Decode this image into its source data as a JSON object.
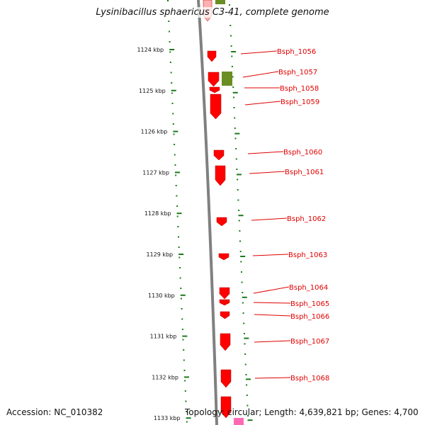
{
  "title": "Lysinibacillus sphaericus C3-41, complete genome",
  "accession_label": "Accession: NC_010382",
  "summary_label": "Topology: circular; Length: 4,639,821 bp; Genes: 4,700",
  "colors": {
    "gene_red": "#ff0000",
    "gene_green": "#6b8e23",
    "gene_pink": "#ff69b4",
    "backbone": "#808080",
    "tick_green": "#1a7a1a",
    "label_red": "#e00000"
  },
  "scale_ticks": [
    "1124 kbp",
    "1125 kbp",
    "1126 kbp",
    "1127 kbp",
    "1128 kbp",
    "1129 kbp",
    "1130 kbp",
    "1131 kbp",
    "1132 kbp",
    "1133 kbp"
  ],
  "gene_labels": [
    "Bsph_1056",
    "Bsph_1057",
    "Bsph_1058",
    "Bsph_1059",
    "Bsph_1060",
    "Bsph_1061",
    "Bsph_1062",
    "Bsph_1063",
    "Bsph_1064",
    "Bsph_1065",
    "Bsph_1066",
    "Bsph_1067",
    "Bsph_1068"
  ]
}
